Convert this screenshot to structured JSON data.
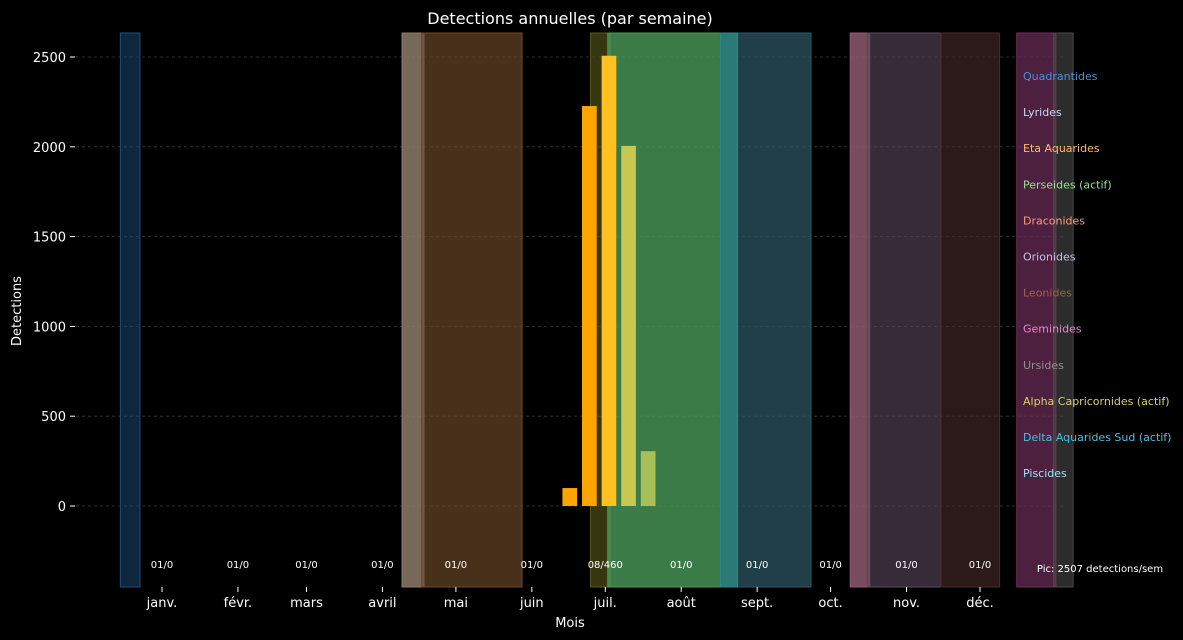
{
  "chart_data": {
    "type": "bar",
    "title": "Detections annuelles (par semaine)",
    "xlabel": "Mois",
    "ylabel": "Detections",
    "ylim": [
      -450,
      2640
    ],
    "yticks": [
      0,
      500,
      1000,
      1500,
      2000,
      2500
    ],
    "ytick_labels": [
      "0",
      "500",
      "1000",
      "1500",
      "2000",
      "2500"
    ],
    "grid": true,
    "months": [
      {
        "label": "janv.",
        "day": 15
      },
      {
        "label": "févr.",
        "day": 46
      },
      {
        "label": "mars",
        "day": 74
      },
      {
        "label": "avril",
        "day": 105
      },
      {
        "label": "mai",
        "day": 135
      },
      {
        "label": "juin",
        "day": 166
      },
      {
        "label": "juil.",
        "day": 196
      },
      {
        "label": "août",
        "day": 227
      },
      {
        "label": "sept.",
        "day": 258
      },
      {
        "label": "oct.",
        "day": 288
      },
      {
        "label": "nov.",
        "day": 319
      },
      {
        "label": "déc.",
        "day": 349
      }
    ],
    "month_counts": [
      {
        "label": "01/0",
        "day": 15
      },
      {
        "label": "01/0",
        "day": 46
      },
      {
        "label": "01/0",
        "day": 74
      },
      {
        "label": "01/0",
        "day": 105
      },
      {
        "label": "01/0",
        "day": 135
      },
      {
        "label": "01/0",
        "day": 166
      },
      {
        "label": "08/460",
        "day": 196
      },
      {
        "label": "01/0",
        "day": 227
      },
      {
        "label": "01/0",
        "day": 258
      },
      {
        "label": "01/0",
        "day": 288
      },
      {
        "label": "01/0",
        "day": 319
      },
      {
        "label": "01/0",
        "day": 349
      }
    ],
    "bars": [
      {
        "day": 181.5,
        "value": 100,
        "color": "#ffa500"
      },
      {
        "day": 189.5,
        "value": 2227,
        "color": "#ffa500"
      },
      {
        "day": 197.5,
        "value": 2507,
        "color": "#ffc020"
      },
      {
        "day": 205.5,
        "value": 2005,
        "color": "#c8c850"
      },
      {
        "day": 213.5,
        "value": 305,
        "color": "#a8c058"
      }
    ],
    "showers": [
      {
        "start": -2,
        "end": 6,
        "color": "#1e4d7a",
        "opacity": 0.5
      },
      {
        "start": 113,
        "end": 122,
        "color": "#8c7a68",
        "opacity": 0.85
      },
      {
        "start": 121,
        "end": 162,
        "color": "#6e4a2a",
        "opacity": 0.65
      },
      {
        "start": 190,
        "end": 198,
        "color": "#5a5a1a",
        "opacity": 0.6
      },
      {
        "start": 197,
        "end": 250,
        "color": "#4a9a5a",
        "opacity": 0.8
      },
      {
        "start": 243,
        "end": 280,
        "color": "#2e5a66",
        "opacity": 0.7
      },
      {
        "start": 243,
        "end": 250,
        "color": "#2a8a8a",
        "opacity": 0.6
      },
      {
        "start": 296,
        "end": 304,
        "color": "#8c5a6e",
        "opacity": 0.85
      },
      {
        "start": 303,
        "end": 333,
        "color": "#5a4a5e",
        "opacity": 0.6
      },
      {
        "start": 333,
        "end": 357,
        "color": "#4a2a2a",
        "opacity": 0.6
      },
      {
        "start": 364,
        "end": 380,
        "color": "#6e2e5a",
        "opacity": 0.7
      },
      {
        "start": 379,
        "end": 387,
        "color": "#4a4a4a",
        "opacity": 0.6
      }
    ],
    "legend_position": "right",
    "legend": [
      {
        "label": "Quadrantides",
        "color": "#4a90d9"
      },
      {
        "label": "Lyrides",
        "color": "#c8d8f0"
      },
      {
        "label": "Eta Aquarides",
        "color": "#ffb870"
      },
      {
        "label": "Perseides (actif)",
        "color": "#98e098"
      },
      {
        "label": "Draconides",
        "color": "#ff9a80"
      },
      {
        "label": "Orionides",
        "color": "#c8c0e0"
      },
      {
        "label": "Leonides",
        "color": "#a06050"
      },
      {
        "label": "Geminides",
        "color": "#e088c8"
      },
      {
        "label": "Ursides",
        "color": "#909090"
      },
      {
        "label": "Alpha Capricornides (actif)",
        "color": "#d8d070"
      },
      {
        "label": "Delta Aquarides Sud (actif)",
        "color": "#4ac0e0"
      },
      {
        "label": "Piscides",
        "color": "#a0e0f0"
      }
    ],
    "annotation": "Pic: 2507 detections/sem"
  }
}
